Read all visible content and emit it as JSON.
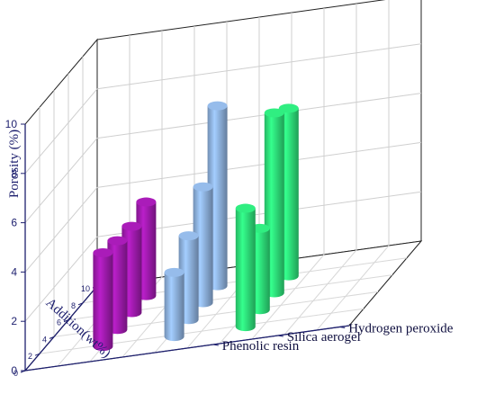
{
  "chart_data": {
    "type": "bar3d",
    "zlabel": "Porosity (%)",
    "xlabel": "Addition(wt%)",
    "zlim": [
      0,
      10
    ],
    "z_ticks": [
      "0",
      "2",
      "4",
      "6",
      "8",
      "10"
    ],
    "x_ticks": [
      "0",
      "2",
      "4",
      "6",
      "8",
      "10"
    ],
    "grid": true,
    "categories": [
      "0",
      "2",
      "4",
      "6"
    ],
    "series": [
      {
        "name": "Phenolic resin",
        "color": "#a21bb0",
        "values": [
          3.8,
          3.6,
          3.5,
          3.8
        ]
      },
      {
        "name": "Silica aerogel",
        "color": "#8fb3e0",
        "values": [
          2.6,
          3.4,
          4.7,
          7.3
        ]
      },
      {
        "name": "Hydrogen peroxide",
        "color": "#2ee37b",
        "values": [
          4.8,
          3.3,
          7.3,
          6.8
        ]
      }
    ]
  }
}
